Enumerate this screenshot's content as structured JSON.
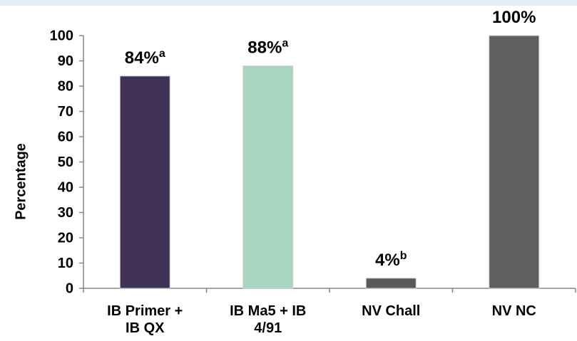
{
  "chart_data": {
    "type": "bar",
    "y_label": "Percentage",
    "categories": [
      "IB Primer + IB QX",
      "IB Ma5 + IB 4/91",
      "NV Chall",
      "NV NC"
    ],
    "values": [
      84,
      88,
      4,
      100
    ],
    "value_labels": [
      "84%",
      "88%",
      "4%",
      "100%"
    ],
    "value_label_superscripts": [
      "a",
      "a",
      "b",
      null
    ],
    "colors": [
      "#3f3256",
      "#a8d5bf",
      "#595959",
      "#5f5f5f"
    ],
    "ylim": [
      0,
      100
    ],
    "yticks": [
      0,
      10,
      20,
      30,
      40,
      50,
      60,
      70,
      80,
      90,
      100
    ]
  }
}
